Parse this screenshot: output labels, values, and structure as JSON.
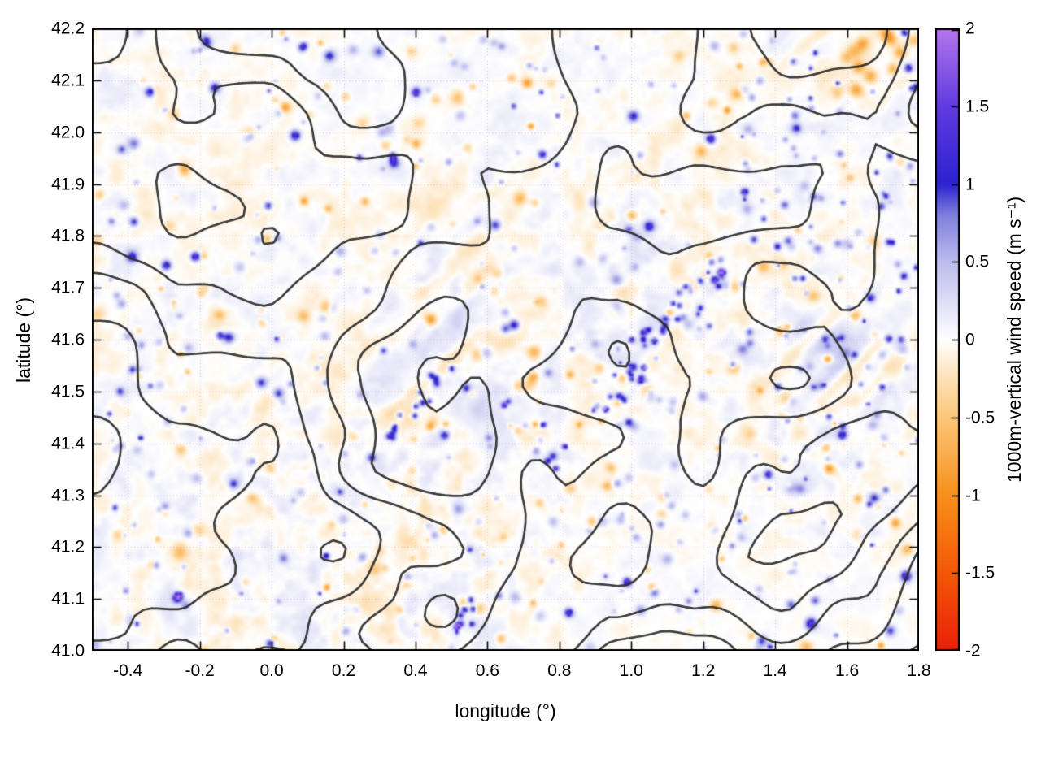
{
  "figure": {
    "background": "#ffffff"
  },
  "style": {
    "frame_color": "#000000",
    "text_color": "#000000",
    "contour_color": "#2b2b2b",
    "grid_color": "#cd9696"
  },
  "chart_data": {
    "type": "heatmap",
    "title": "",
    "xlabel": "longitude (°)",
    "ylabel": "latitude (°)",
    "xlim": [
      -0.5,
      1.8
    ],
    "ylim": [
      41.0,
      42.2
    ],
    "grid": "dotted",
    "x_ticks": {
      "values": [
        -0.4,
        -0.2,
        0.0,
        0.2,
        0.4,
        0.6,
        0.8,
        1.0,
        1.2,
        1.4,
        1.6,
        1.8
      ],
      "labels": [
        "-0.4",
        "-0.2",
        "0.0",
        "0.2",
        "0.4",
        "0.6",
        "0.8",
        "1.0",
        "1.2",
        "1.4",
        "1.6",
        "1.8"
      ]
    },
    "y_ticks": {
      "values": [
        41.0,
        41.1,
        41.2,
        41.3,
        41.4,
        41.5,
        41.6,
        41.7,
        41.8,
        41.9,
        42.0,
        42.1,
        42.2
      ],
      "labels": [
        "41.0",
        "41.1",
        "41.2",
        "41.3",
        "41.4",
        "41.5",
        "41.6",
        "41.7",
        "41.8",
        "41.9",
        "42.0",
        "42.1",
        "42.2"
      ]
    },
    "field_description": "1000 m vertical wind speed field: mottled near-zero values (about ±0.3 m/s, pale orange and lavender) with diagonal gravity-wave streaks and scattered strong updraft cells (deep blue, up to ~2 m/s, purple cores) concentrated along terrain ridges; dark grey terrain elevation contour lines overlaid; bottom-right corner nearly calm with parallel contours",
    "overlay_contours": {
      "description": "terrain elevation contour lines",
      "color": "#2b2b2b",
      "n_levels": 5
    },
    "colorbar": {
      "label": "1000m-vertical wind speed (m s⁻¹)",
      "range": [
        -2,
        2
      ],
      "tick_values": [
        -2,
        -1.5,
        -1,
        -0.5,
        0,
        0.5,
        1,
        1.5,
        2
      ],
      "tick_labels": [
        "-2",
        "-1.5",
        "-1",
        "-0.5",
        "0",
        "0.5",
        "1",
        "1.5",
        "2"
      ],
      "colormap_stops": [
        [
          -2.0,
          "#e8200a"
        ],
        [
          -1.5,
          "#f35806"
        ],
        [
          -1.0,
          "#f8901c"
        ],
        [
          -0.5,
          "#fcc678"
        ],
        [
          -0.2,
          "#fde7c6"
        ],
        [
          0.0,
          "#ffffff"
        ],
        [
          0.2,
          "#e4e4f8"
        ],
        [
          0.5,
          "#bcbcee"
        ],
        [
          0.8,
          "#8080dd"
        ],
        [
          1.0,
          "#2d22cf"
        ],
        [
          1.5,
          "#5f3be0"
        ],
        [
          2.0,
          "#b476ec"
        ]
      ]
    }
  }
}
